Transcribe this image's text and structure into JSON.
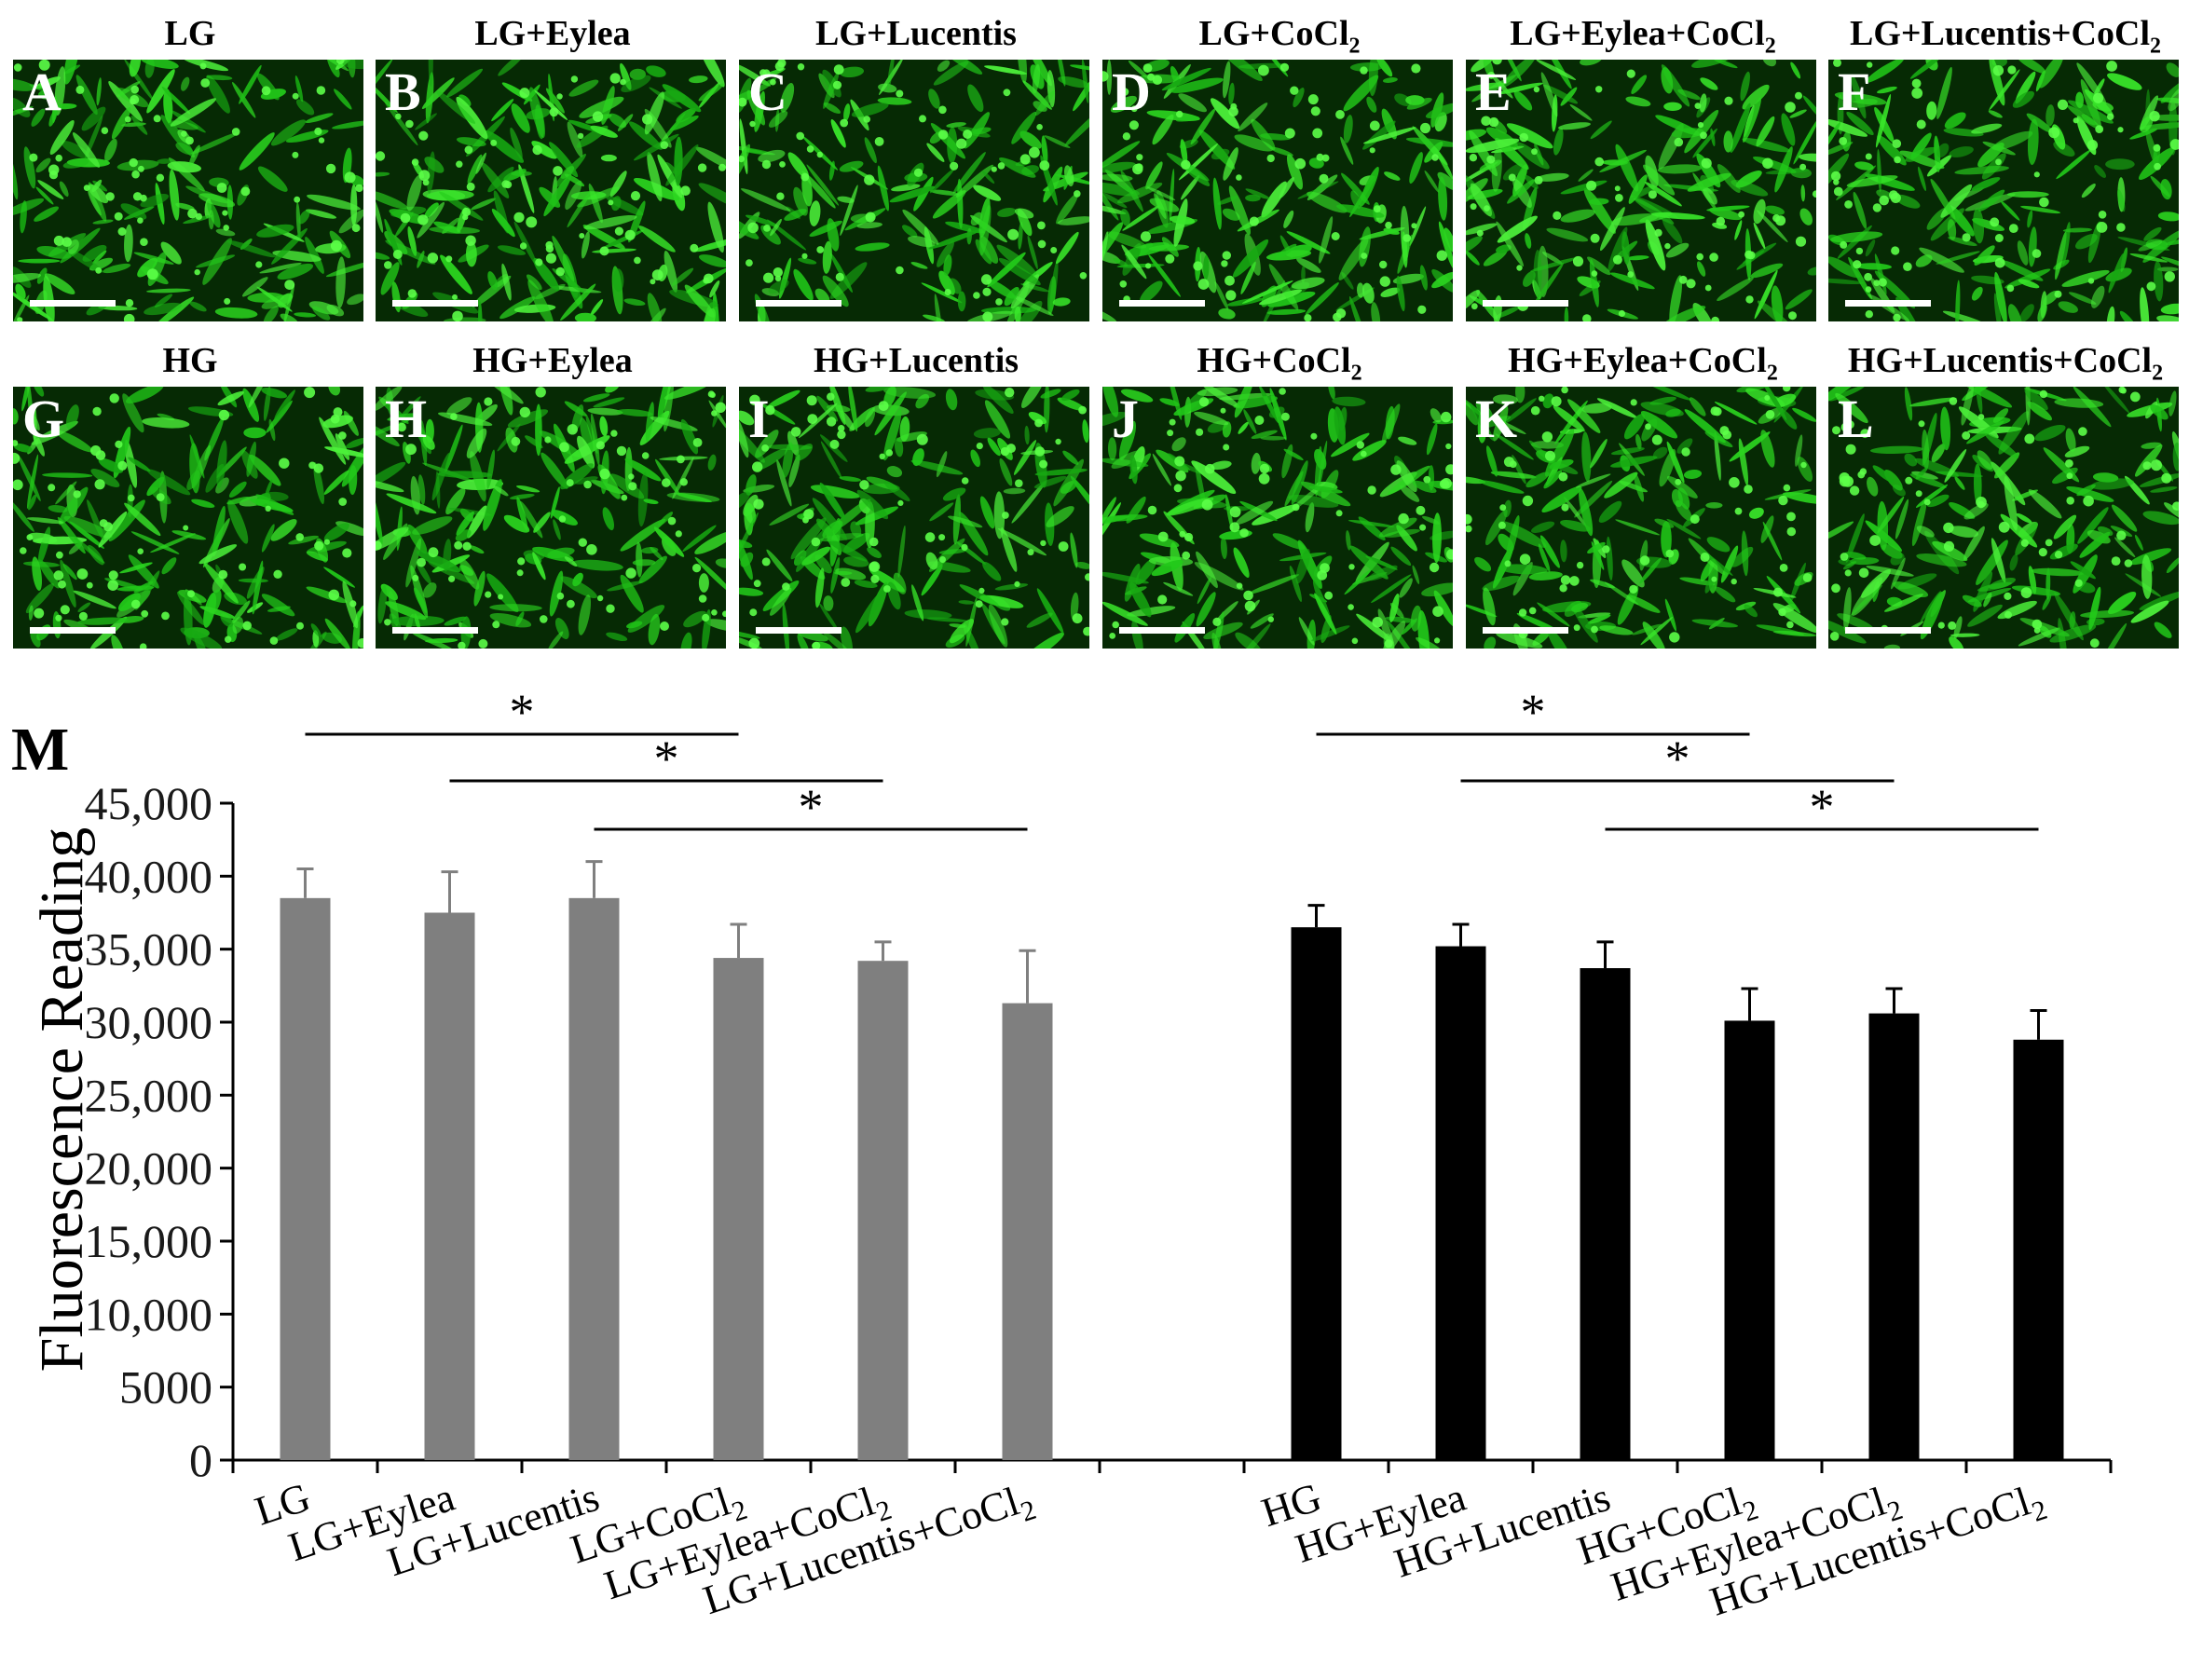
{
  "panels": [
    {
      "letter": "A",
      "label": "LG",
      "sub": ""
    },
    {
      "letter": "B",
      "label": "LG+Eylea",
      "sub": ""
    },
    {
      "letter": "C",
      "label": "LG+Lucentis",
      "sub": ""
    },
    {
      "letter": "D",
      "label": "LG+CoCl",
      "sub": "2"
    },
    {
      "letter": "E",
      "label": "LG+Eylea+CoCl",
      "sub": "2"
    },
    {
      "letter": "F",
      "label": "LG+Lucentis+CoCl",
      "sub": "2"
    },
    {
      "letter": "G",
      "label": "HG",
      "sub": ""
    },
    {
      "letter": "H",
      "label": "HG+Eylea",
      "sub": ""
    },
    {
      "letter": "I",
      "label": "HG+Lucentis",
      "sub": ""
    },
    {
      "letter": "J",
      "label": "HG+CoCl",
      "sub": "2"
    },
    {
      "letter": "K",
      "label": "HG+Eylea+CoCl",
      "sub": "2"
    },
    {
      "letter": "L",
      "label": "HG+Lucentis+CoCl",
      "sub": "2"
    }
  ],
  "colors": {
    "lg_bars": "#7f7f7f",
    "hg_bars": "#000000",
    "fluorescence": "#33dd22"
  },
  "chart_data": {
    "type": "bar",
    "panel_label": "M",
    "ylabel": "Fluorescence Reading",
    "ylim": [
      0,
      45000
    ],
    "yticks": [
      "0",
      "5000",
      "10,000",
      "15,000",
      "20,000",
      "25,000",
      "30,000",
      "35,000",
      "40,000",
      "45,000"
    ],
    "categories": [
      {
        "label": "LG",
        "sub": ""
      },
      {
        "label": "LG+Eylea",
        "sub": ""
      },
      {
        "label": "LG+Lucentis",
        "sub": ""
      },
      {
        "label": "LG+CoCl",
        "sub": "2"
      },
      {
        "label": "LG+Eylea+CoCl",
        "sub": "2"
      },
      {
        "label": "LG+Lucentis+CoCl",
        "sub": "2"
      },
      {
        "label": "",
        "sub": ""
      },
      {
        "label": "HG",
        "sub": ""
      },
      {
        "label": "HG+Eylea",
        "sub": ""
      },
      {
        "label": "HG+Lucentis",
        "sub": ""
      },
      {
        "label": "HG+CoCl",
        "sub": "2"
      },
      {
        "label": "HG+Eylea+CoCl",
        "sub": "2"
      },
      {
        "label": "HG+Lucentis+CoCl",
        "sub": "2"
      }
    ],
    "values": [
      38500,
      37500,
      38500,
      34400,
      34200,
      31300,
      null,
      36500,
      35200,
      33700,
      30100,
      30600,
      28800
    ],
    "errors": [
      2000,
      2800,
      2500,
      2300,
      1300,
      3600,
      null,
      1500,
      1500,
      1800,
      2200,
      1700,
      2000
    ],
    "bar_group": [
      "LG",
      "LG",
      "LG",
      "LG",
      "LG",
      "LG",
      null,
      "HG",
      "HG",
      "HG",
      "HG",
      "HG",
      "HG"
    ],
    "significance": [
      {
        "from": 0,
        "to": 3,
        "label": "*"
      },
      {
        "from": 1,
        "to": 4,
        "label": "*"
      },
      {
        "from": 2,
        "to": 5,
        "label": "*"
      },
      {
        "from": 7,
        "to": 10,
        "label": "*"
      },
      {
        "from": 8,
        "to": 11,
        "label": "*"
      },
      {
        "from": 9,
        "to": 12,
        "label": "*"
      }
    ]
  }
}
